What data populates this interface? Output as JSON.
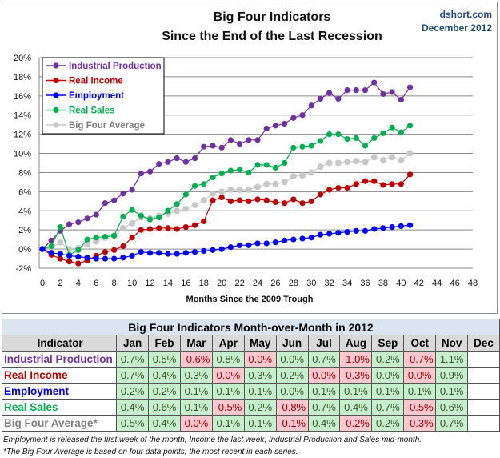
{
  "chart_data": {
    "type": "line",
    "title": "Big Four Indicators",
    "subtitle": "Since the End of the Last Recession",
    "source": "dshort.com",
    "date": "December 2012",
    "xlabel": "Months Since the 2009 Trough",
    "ylabel": "",
    "xlim": [
      0,
      48
    ],
    "ylim": [
      -2,
      20
    ],
    "xticks": [
      0,
      2,
      4,
      6,
      8,
      10,
      12,
      14,
      16,
      18,
      20,
      22,
      24,
      26,
      28,
      30,
      32,
      34,
      36,
      38,
      40,
      42,
      44,
      46,
      48
    ],
    "yticks": [
      "-2%",
      "0%",
      "2%",
      "4%",
      "6%",
      "8%",
      "10%",
      "12%",
      "14%",
      "16%",
      "18%",
      "20%"
    ],
    "grid": "horizontal",
    "legend": "top-left",
    "series": [
      {
        "name": "Industrial Production",
        "color": "#7030a0",
        "values": [
          0,
          0.9,
          1.9,
          2.6,
          2.8,
          3.2,
          3.6,
          4.8,
          5.1,
          5.8,
          6.2,
          7.9,
          8.1,
          8.9,
          9.1,
          9.5,
          9.1,
          9.5,
          10.7,
          10.8,
          10.6,
          11.4,
          11.0,
          11.4,
          11.4,
          12.6,
          12.9,
          13.1,
          13.7,
          14.0,
          15.0,
          15.7,
          16.3,
          15.7,
          16.6,
          16.6,
          16.6,
          17.4,
          16.2,
          16.4,
          15.6,
          16.9
        ]
      },
      {
        "name": "Real Income",
        "color": "#c00000",
        "values": [
          0,
          -0.6,
          -1.0,
          -1.3,
          -1.5,
          -1.2,
          -0.7,
          -0.3,
          -0.1,
          0.3,
          1.2,
          2.0,
          2.1,
          2.2,
          2.2,
          2.1,
          2.3,
          2.5,
          2.9,
          5.1,
          5.4,
          5.0,
          5.1,
          5.0,
          5.2,
          5.1,
          4.9,
          4.8,
          5.2,
          4.8,
          5.0,
          5.7,
          6.2,
          6.4,
          6.4,
          6.8,
          7.1,
          7.1,
          6.7,
          6.8,
          6.8,
          7.8
        ]
      },
      {
        "name": "Employment",
        "color": "#0000ff",
        "values": [
          0,
          -0.4,
          -0.5,
          -0.7,
          -0.8,
          -0.9,
          -1.0,
          -1.0,
          -1.0,
          -0.9,
          -0.7,
          -0.3,
          -0.4,
          -0.4,
          -0.5,
          -0.5,
          -0.4,
          -0.3,
          -0.2,
          -0.1,
          0.0,
          0.2,
          0.4,
          0.4,
          0.6,
          0.6,
          0.7,
          0.9,
          1.0,
          1.1,
          1.2,
          1.5,
          1.6,
          1.7,
          1.8,
          1.9,
          1.9,
          2.1,
          2.2,
          2.3,
          2.4,
          2.5
        ]
      },
      {
        "name": "Real Sales",
        "color": "#00b050",
        "values": [
          0,
          0.3,
          2.3,
          -0.6,
          -0.1,
          1.0,
          1.2,
          1.3,
          1.4,
          3.4,
          4.1,
          3.5,
          3.1,
          3.3,
          4.0,
          4.7,
          5.7,
          6.6,
          6.8,
          7.5,
          7.9,
          8.2,
          8.3,
          8.0,
          8.8,
          8.8,
          8.5,
          9.0,
          10.6,
          10.7,
          10.8,
          11.3,
          12.0,
          12.0,
          11.5,
          11.6,
          10.8,
          11.6,
          12.1,
          12.7,
          12.2,
          12.9
        ]
      },
      {
        "name": "Big Four Average",
        "color": "#c8c8c8",
        "values": [
          0,
          0.1,
          0.7,
          0.0,
          0.1,
          0.5,
          0.8,
          1.2,
          1.4,
          2.2,
          2.7,
          3.3,
          3.2,
          3.5,
          3.7,
          4.0,
          4.2,
          4.6,
          5.1,
          5.8,
          6.0,
          6.2,
          6.2,
          6.2,
          6.5,
          6.8,
          6.8,
          7.0,
          7.6,
          7.7,
          8.0,
          8.6,
          9.0,
          9.0,
          9.1,
          9.2,
          9.1,
          9.6,
          9.3,
          9.6,
          9.3,
          10.0
        ]
      }
    ]
  },
  "table": {
    "title": "Big Four Indicators Month-over-Month in 2012",
    "header": [
      "Indicator",
      "Jan",
      "Feb",
      "Mar",
      "Apr",
      "May",
      "Jun",
      "Jul",
      "Aug",
      "Sep",
      "Oct",
      "Nov",
      "Dec"
    ],
    "rows": [
      {
        "label": "Industrial Production",
        "color": "#7030a0",
        "values": [
          "0.7%",
          "0.5%",
          "-0.6%",
          "0.8%",
          "0.0%",
          "0.0%",
          "0.7%",
          "-1.0%",
          "0.2%",
          "-0.7%",
          "1.1%",
          ""
        ],
        "status": [
          "pos",
          "pos",
          "neg",
          "pos",
          "neg",
          "pos",
          "pos",
          "neg",
          "pos",
          "neg",
          "pos",
          ""
        ]
      },
      {
        "label": "Real Income",
        "color": "#c00000",
        "values": [
          "0.7%",
          "0.4%",
          "0.3%",
          "0.0%",
          "0.3%",
          "0.2%",
          "0.0%",
          "-0.3%",
          "0.0%",
          "0.0%",
          "0.9%",
          ""
        ],
        "status": [
          "pos",
          "pos",
          "pos",
          "neg",
          "pos",
          "pos",
          "neg",
          "neg",
          "pos",
          "neg",
          "pos",
          ""
        ]
      },
      {
        "label": "Employment",
        "color": "#0000ff",
        "values": [
          "0.2%",
          "0.2%",
          "0.1%",
          "0.1%",
          "0.1%",
          "0.0%",
          "0.1%",
          "0.1%",
          "0.1%",
          "0.1%",
          "0.1%",
          ""
        ],
        "status": [
          "pos",
          "pos",
          "pos",
          "pos",
          "pos",
          "pos",
          "pos",
          "pos",
          "pos",
          "pos",
          "pos",
          ""
        ]
      },
      {
        "label": "Real Sales",
        "color": "#00b050",
        "values": [
          "0.4%",
          "0.6%",
          "0.1%",
          "-0.5%",
          "0.2%",
          "-0.8%",
          "0.7%",
          "0.4%",
          "0.7%",
          "-0.5%",
          "0.6%",
          ""
        ],
        "status": [
          "pos",
          "pos",
          "pos",
          "neg",
          "pos",
          "neg",
          "pos",
          "pos",
          "pos",
          "neg",
          "pos",
          ""
        ]
      },
      {
        "label": "Big Four Average*",
        "color": "#7f7f7f",
        "values": [
          "0.5%",
          "0.4%",
          "0.0%",
          "0.1%",
          "0.1%",
          "-0.1%",
          "0.4%",
          "-0.2%",
          "0.2%",
          "-0.3%",
          "0.7%",
          ""
        ],
        "status": [
          "pos",
          "pos",
          "neg",
          "pos",
          "pos",
          "neg",
          "pos",
          "neg",
          "pos",
          "neg",
          "pos",
          ""
        ]
      }
    ],
    "notes": [
      "Employment is released the first week of the month, Income the last week, Industrial Production and Sales mid-month.",
      "*The Big Four Average is based on four data points, the most recent in each series."
    ]
  }
}
